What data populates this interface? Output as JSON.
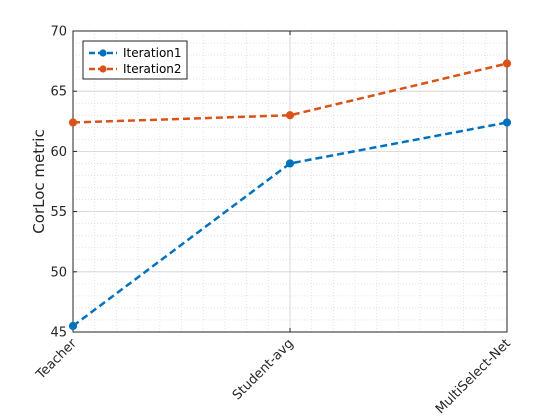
{
  "chart_data": {
    "type": "line",
    "categories": [
      "Teacher",
      "Student-avg",
      "MultiSelect-Net"
    ],
    "ylabel": "CorLoc metric",
    "xlabel": "",
    "ylim": [
      45,
      70
    ],
    "yticks": [
      45,
      50,
      55,
      60,
      65,
      70
    ],
    "grid": true,
    "minor_grid": true,
    "legend_position": "top-left",
    "series": [
      {
        "name": "Iteration1",
        "values": [
          45.5,
          59.0,
          62.4
        ],
        "color": "#0072BD",
        "line_style": "dashed",
        "marker": "circle"
      },
      {
        "name": "Iteration2",
        "values": [
          62.4,
          63.0,
          67.3
        ],
        "color": "#D95319",
        "line_style": "dashed",
        "marker": "circle"
      }
    ]
  }
}
